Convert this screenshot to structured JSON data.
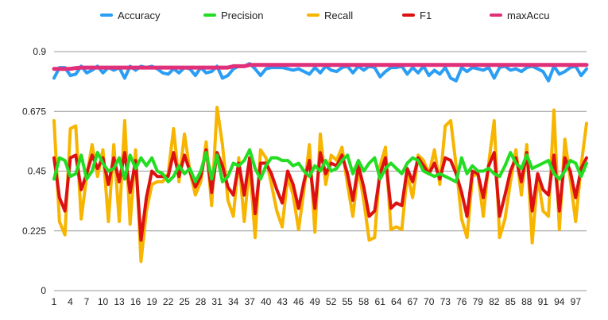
{
  "chart_data": {
    "type": "line",
    "title": "",
    "xlabel": "",
    "ylabel": "",
    "grid": true,
    "legend_position": "top",
    "ylim": [
      0,
      0.95
    ],
    "y_ticks": [
      0,
      0.225,
      0.45,
      0.675,
      0.9
    ],
    "y_tick_labels": [
      "0",
      "0.225",
      "0.45",
      "0.675",
      "0.9"
    ],
    "x_ticks": [
      1,
      4,
      7,
      10,
      13,
      16,
      19,
      22,
      25,
      28,
      31,
      34,
      37,
      40,
      43,
      46,
      49,
      52,
      55,
      58,
      61,
      64,
      67,
      70,
      73,
      76,
      79,
      82,
      85,
      88,
      91,
      94,
      97
    ],
    "x_tick_labels": [
      "1",
      "4",
      "7",
      "10",
      "13",
      "16",
      "19",
      "22",
      "25",
      "28",
      "31",
      "34",
      "37",
      "40",
      "43",
      "46",
      "49",
      "52",
      "55",
      "58",
      "61",
      "64",
      "67",
      "70",
      "73",
      "76",
      "79",
      "82",
      "85",
      "88",
      "91",
      "94",
      "97"
    ],
    "x": [
      1,
      2,
      3,
      4,
      5,
      6,
      7,
      8,
      9,
      10,
      11,
      12,
      13,
      14,
      15,
      16,
      17,
      18,
      19,
      20,
      21,
      22,
      23,
      24,
      25,
      26,
      27,
      28,
      29,
      30,
      31,
      32,
      33,
      34,
      35,
      36,
      37,
      38,
      39,
      40,
      41,
      42,
      43,
      44,
      45,
      46,
      47,
      48,
      49,
      50,
      51,
      52,
      53,
      54,
      55,
      56,
      57,
      58,
      59,
      60,
      61,
      62,
      63,
      64,
      65,
      66,
      67,
      68,
      69,
      70,
      71,
      72,
      73,
      74,
      75,
      76,
      77,
      78,
      79,
      80,
      81,
      82,
      83,
      84,
      85,
      86,
      87,
      88,
      89,
      90,
      91,
      92,
      93,
      94,
      95,
      96,
      97,
      98,
      99
    ],
    "series": [
      {
        "name": "Accuracy",
        "color": "#2a9df4",
        "values": [
          0.8,
          0.84,
          0.84,
          0.81,
          0.815,
          0.845,
          0.82,
          0.83,
          0.845,
          0.82,
          0.84,
          0.83,
          0.84,
          0.8,
          0.845,
          0.83,
          0.845,
          0.84,
          0.845,
          0.835,
          0.82,
          0.815,
          0.835,
          0.82,
          0.84,
          0.835,
          0.81,
          0.84,
          0.82,
          0.825,
          0.845,
          0.8,
          0.81,
          0.835,
          0.845,
          0.845,
          0.855,
          0.835,
          0.81,
          0.835,
          0.84,
          0.84,
          0.84,
          0.835,
          0.83,
          0.835,
          0.825,
          0.815,
          0.84,
          0.82,
          0.845,
          0.83,
          0.825,
          0.84,
          0.845,
          0.82,
          0.845,
          0.83,
          0.845,
          0.84,
          0.805,
          0.825,
          0.84,
          0.84,
          0.845,
          0.815,
          0.84,
          0.82,
          0.845,
          0.81,
          0.83,
          0.815,
          0.84,
          0.8,
          0.79,
          0.84,
          0.825,
          0.84,
          0.835,
          0.83,
          0.84,
          0.8,
          0.84,
          0.845,
          0.83,
          0.835,
          0.825,
          0.84,
          0.845,
          0.835,
          0.825,
          0.79,
          0.845,
          0.815,
          0.825,
          0.84,
          0.845,
          0.81,
          0.835
        ]
      },
      {
        "name": "Precision",
        "color": "#22dd22",
        "values": [
          0.42,
          0.5,
          0.49,
          0.43,
          0.44,
          0.51,
          0.42,
          0.45,
          0.52,
          0.48,
          0.45,
          0.46,
          0.5,
          0.42,
          0.51,
          0.46,
          0.5,
          0.47,
          0.5,
          0.45,
          0.44,
          0.41,
          0.43,
          0.47,
          0.44,
          0.46,
          0.41,
          0.45,
          0.52,
          0.42,
          0.51,
          0.41,
          0.43,
          0.48,
          0.47,
          0.49,
          0.53,
          0.46,
          0.42,
          0.47,
          0.5,
          0.5,
          0.49,
          0.49,
          0.47,
          0.48,
          0.45,
          0.43,
          0.47,
          0.45,
          0.49,
          0.45,
          0.46,
          0.49,
          0.51,
          0.44,
          0.49,
          0.45,
          0.48,
          0.5,
          0.42,
          0.46,
          0.48,
          0.46,
          0.44,
          0.48,
          0.5,
          0.49,
          0.45,
          0.44,
          0.43,
          0.44,
          0.43,
          0.42,
          0.41,
          0.5,
          0.44,
          0.47,
          0.45,
          0.45,
          0.46,
          0.44,
          0.43,
          0.47,
          0.52,
          0.48,
          0.46,
          0.51,
          0.46,
          0.47,
          0.48,
          0.49,
          0.44,
          0.42,
          0.45,
          0.49,
          0.48,
          0.43,
          0.48
        ]
      },
      {
        "name": "Recall",
        "color": "#f7b500",
        "values": [
          0.64,
          0.26,
          0.21,
          0.61,
          0.62,
          0.27,
          0.43,
          0.55,
          0.43,
          0.53,
          0.26,
          0.55,
          0.26,
          0.64,
          0.25,
          0.53,
          0.11,
          0.3,
          0.4,
          0.41,
          0.41,
          0.44,
          0.61,
          0.41,
          0.59,
          0.45,
          0.36,
          0.41,
          0.56,
          0.32,
          0.69,
          0.55,
          0.34,
          0.28,
          0.5,
          0.26,
          0.48,
          0.2,
          0.53,
          0.5,
          0.4,
          0.3,
          0.24,
          0.43,
          0.36,
          0.23,
          0.38,
          0.55,
          0.22,
          0.59,
          0.4,
          0.51,
          0.49,
          0.54,
          0.4,
          0.28,
          0.46,
          0.34,
          0.19,
          0.2,
          0.47,
          0.54,
          0.23,
          0.24,
          0.23,
          0.44,
          0.35,
          0.51,
          0.49,
          0.44,
          0.53,
          0.4,
          0.62,
          0.64,
          0.47,
          0.27,
          0.2,
          0.43,
          0.44,
          0.28,
          0.48,
          0.64,
          0.2,
          0.27,
          0.41,
          0.53,
          0.36,
          0.55,
          0.18,
          0.43,
          0.3,
          0.28,
          0.68,
          0.23,
          0.57,
          0.42,
          0.26,
          0.47,
          0.63
        ]
      },
      {
        "name": "F1",
        "color": "#dd1111",
        "values": [
          0.5,
          0.35,
          0.3,
          0.5,
          0.51,
          0.38,
          0.44,
          0.51,
          0.46,
          0.5,
          0.4,
          0.5,
          0.41,
          0.52,
          0.37,
          0.49,
          0.19,
          0.35,
          0.45,
          0.43,
          0.43,
          0.43,
          0.52,
          0.43,
          0.51,
          0.45,
          0.39,
          0.43,
          0.53,
          0.37,
          0.52,
          0.47,
          0.39,
          0.36,
          0.48,
          0.36,
          0.5,
          0.29,
          0.48,
          0.48,
          0.44,
          0.38,
          0.33,
          0.45,
          0.4,
          0.31,
          0.41,
          0.49,
          0.31,
          0.52,
          0.44,
          0.48,
          0.47,
          0.51,
          0.44,
          0.34,
          0.47,
          0.39,
          0.28,
          0.3,
          0.44,
          0.5,
          0.31,
          0.33,
          0.32,
          0.46,
          0.41,
          0.5,
          0.47,
          0.44,
          0.48,
          0.42,
          0.5,
          0.49,
          0.44,
          0.37,
          0.28,
          0.45,
          0.44,
          0.35,
          0.47,
          0.52,
          0.28,
          0.36,
          0.45,
          0.5,
          0.41,
          0.52,
          0.3,
          0.44,
          0.38,
          0.36,
          0.51,
          0.3,
          0.5,
          0.45,
          0.35,
          0.46,
          0.5
        ]
      },
      {
        "name": "maxAccu",
        "color": "#e0307a",
        "values": [
          0.835,
          0.835,
          0.835,
          0.835,
          0.838,
          0.84,
          0.84,
          0.84,
          0.84,
          0.84,
          0.84,
          0.84,
          0.84,
          0.84,
          0.84,
          0.84,
          0.84,
          0.84,
          0.84,
          0.84,
          0.84,
          0.84,
          0.84,
          0.84,
          0.84,
          0.84,
          0.84,
          0.84,
          0.84,
          0.84,
          0.84,
          0.84,
          0.84,
          0.845,
          0.845,
          0.845,
          0.85,
          0.85,
          0.85,
          0.85,
          0.85,
          0.85,
          0.85,
          0.85,
          0.85,
          0.85,
          0.85,
          0.85,
          0.85,
          0.85,
          0.85,
          0.85,
          0.85,
          0.85,
          0.85,
          0.85,
          0.85,
          0.85,
          0.85,
          0.85,
          0.85,
          0.85,
          0.85,
          0.85,
          0.85,
          0.85,
          0.85,
          0.85,
          0.85,
          0.85,
          0.85,
          0.85,
          0.85,
          0.85,
          0.85,
          0.85,
          0.85,
          0.85,
          0.85,
          0.85,
          0.85,
          0.85,
          0.85,
          0.85,
          0.85,
          0.85,
          0.85,
          0.85,
          0.85,
          0.85,
          0.85,
          0.85,
          0.85,
          0.85,
          0.85,
          0.85,
          0.85,
          0.85,
          0.85
        ]
      }
    ]
  }
}
